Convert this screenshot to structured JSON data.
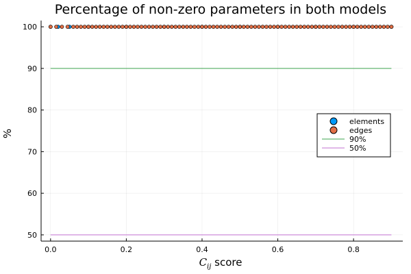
{
  "chart_data": {
    "type": "scatter",
    "title": "Percentage of non-zero parameters in both models",
    "xlabel_symbol": "C",
    "xlabel_subscript": "ij",
    "xlabel_suffix": " score",
    "ylabel": "%",
    "xlim": [
      -0.025,
      0.93
    ],
    "ylim": [
      48.5,
      101.5
    ],
    "xticks": [
      0.0,
      0.2,
      0.4,
      0.6,
      0.8
    ],
    "xtick_labels": [
      "0.0",
      "0.2",
      "0.4",
      "0.6",
      "0.8"
    ],
    "yticks": [
      50,
      60,
      70,
      80,
      90,
      100
    ],
    "ytick_labels": [
      "50",
      "60",
      "70",
      "80",
      "90",
      "100"
    ],
    "grid": true,
    "legend_position": "right",
    "series": [
      {
        "name": "elements",
        "kind": "scatter",
        "color": "#009AFA",
        "x": [
          0.0,
          0.02,
          0.05,
          0.1,
          0.2,
          0.3,
          0.4,
          0.5,
          0.6,
          0.7,
          0.8,
          0.9
        ],
        "y": [
          100,
          100,
          100,
          100,
          100,
          100,
          100,
          100,
          100,
          100,
          100,
          100
        ]
      },
      {
        "name": "edges",
        "kind": "scatter",
        "color": "#E26F46",
        "x": [
          0.0,
          0.015,
          0.03,
          0.045,
          0.06,
          0.07,
          0.08,
          0.09,
          0.1,
          0.11,
          0.12,
          0.13,
          0.14,
          0.15,
          0.16,
          0.17,
          0.18,
          0.19,
          0.2,
          0.21,
          0.22,
          0.23,
          0.24,
          0.25,
          0.26,
          0.27,
          0.28,
          0.29,
          0.3,
          0.31,
          0.32,
          0.33,
          0.34,
          0.35,
          0.36,
          0.37,
          0.38,
          0.39,
          0.4,
          0.41,
          0.42,
          0.43,
          0.44,
          0.45,
          0.46,
          0.47,
          0.48,
          0.49,
          0.5,
          0.51,
          0.52,
          0.53,
          0.54,
          0.55,
          0.56,
          0.57,
          0.58,
          0.59,
          0.6,
          0.61,
          0.62,
          0.63,
          0.64,
          0.65,
          0.66,
          0.67,
          0.68,
          0.69,
          0.7,
          0.71,
          0.72,
          0.73,
          0.74,
          0.75,
          0.76,
          0.77,
          0.78,
          0.79,
          0.8,
          0.81,
          0.82,
          0.83,
          0.84,
          0.85,
          0.86,
          0.87,
          0.88,
          0.89,
          0.9
        ],
        "y": [
          100,
          100,
          100,
          100,
          100,
          100,
          100,
          100,
          100,
          100,
          100,
          100,
          100,
          100,
          100,
          100,
          100,
          100,
          100,
          100,
          100,
          100,
          100,
          100,
          100,
          100,
          100,
          100,
          100,
          100,
          100,
          100,
          100,
          100,
          100,
          100,
          100,
          100,
          100,
          100,
          100,
          100,
          100,
          100,
          100,
          100,
          100,
          100,
          100,
          100,
          100,
          100,
          100,
          100,
          100,
          100,
          100,
          100,
          100,
          100,
          100,
          100,
          100,
          100,
          100,
          100,
          100,
          100,
          100,
          100,
          100,
          100,
          100,
          100,
          100,
          100,
          100,
          100,
          100,
          100,
          100,
          100,
          100,
          100,
          100,
          100,
          100,
          100,
          100
        ]
      },
      {
        "name": "90%",
        "kind": "line",
        "color": "#3DA44D",
        "x": [
          0.0,
          0.9
        ],
        "y": [
          90,
          90
        ]
      },
      {
        "name": "50%",
        "kind": "line",
        "color": "#C271D2",
        "x": [
          0.0,
          0.9
        ],
        "y": [
          50,
          50
        ]
      }
    ]
  }
}
